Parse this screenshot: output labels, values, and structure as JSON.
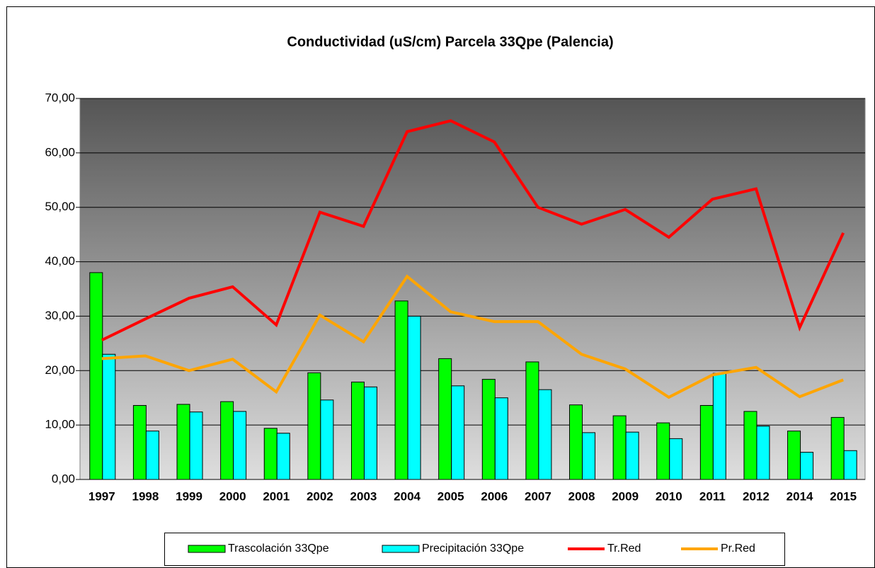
{
  "chart_data": {
    "type": "bar",
    "title": "Conductividad (uS/cm) Parcela 33Qpe (Palencia)",
    "categories": [
      "1997",
      "1998",
      "1999",
      "2000",
      "2001",
      "2002",
      "2003",
      "2004",
      "2005",
      "2006",
      "2007",
      "2008",
      "2009",
      "2010",
      "2011",
      "2012",
      "2014",
      "2015"
    ],
    "series": [
      {
        "name": "Trascolación  33Qpe",
        "type": "bar",
        "color": "#00ff00",
        "values": [
          38.0,
          13.6,
          13.8,
          14.3,
          9.4,
          19.6,
          17.9,
          32.8,
          22.2,
          18.4,
          21.6,
          13.7,
          11.7,
          10.4,
          13.6,
          12.5,
          8.9,
          11.4
        ]
      },
      {
        "name": "Precipitación 33Qpe",
        "type": "bar",
        "color": "#00ffff",
        "values": [
          23.0,
          8.9,
          12.4,
          12.5,
          8.5,
          14.6,
          17.0,
          30.0,
          17.2,
          15.0,
          16.5,
          8.6,
          8.7,
          7.5,
          19.5,
          9.8,
          5.0,
          5.3
        ]
      },
      {
        "name": "Tr.Red",
        "type": "line",
        "color": "#ff0000",
        "values": [
          25.6,
          29.5,
          33.3,
          35.4,
          28.4,
          49.1,
          46.5,
          63.9,
          65.9,
          62.0,
          50.0,
          46.9,
          49.6,
          44.5,
          51.5,
          53.4,
          27.9,
          45.3
        ]
      },
      {
        "name": "Pr.Red",
        "type": "line",
        "color": "#ffa500",
        "values": [
          22.2,
          22.7,
          20.0,
          22.1,
          16.1,
          30.2,
          25.3,
          37.3,
          30.8,
          29.0,
          29.0,
          23.0,
          20.3,
          15.1,
          19.2,
          20.6,
          15.2,
          18.3
        ]
      }
    ],
    "ylim": [
      0,
      70
    ],
    "yticks": [
      {
        "value": 0,
        "label": "0,00"
      },
      {
        "value": 10,
        "label": "10,00"
      },
      {
        "value": 20,
        "label": "20,00"
      },
      {
        "value": 30,
        "label": "30,00"
      },
      {
        "value": 40,
        "label": "40,00"
      },
      {
        "value": 50,
        "label": "50,00"
      },
      {
        "value": 60,
        "label": "60,00"
      },
      {
        "value": 70,
        "label": "70,00"
      }
    ],
    "grid": true,
    "legend": "bottom"
  }
}
